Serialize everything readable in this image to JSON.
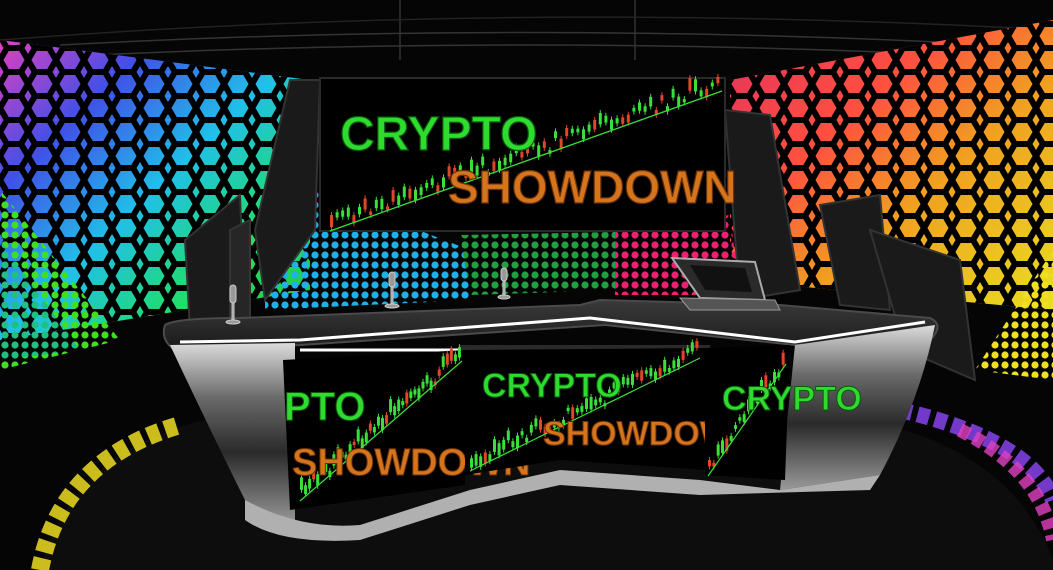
{
  "scene": {
    "main_screen": {
      "line1": "CRYPTO",
      "line2": "SHOWDOWN"
    },
    "desk_panel_left": {
      "line1": "PTO",
      "line2": "SHOWDOWN"
    },
    "desk_panel_center": {
      "line1": "CRYPTO",
      "line2": "SHOWDOWN"
    },
    "desk_panel_right": {
      "line1": "CRYPTO"
    }
  },
  "colors": {
    "crypto_green": "#2edb2e",
    "showdown_orange": "#d4741c",
    "candle_green": "#39e03a",
    "candle_red": "#e0462a",
    "background": "#000000"
  },
  "icons": [
    "microphone-icon",
    "laptop-icon"
  ]
}
